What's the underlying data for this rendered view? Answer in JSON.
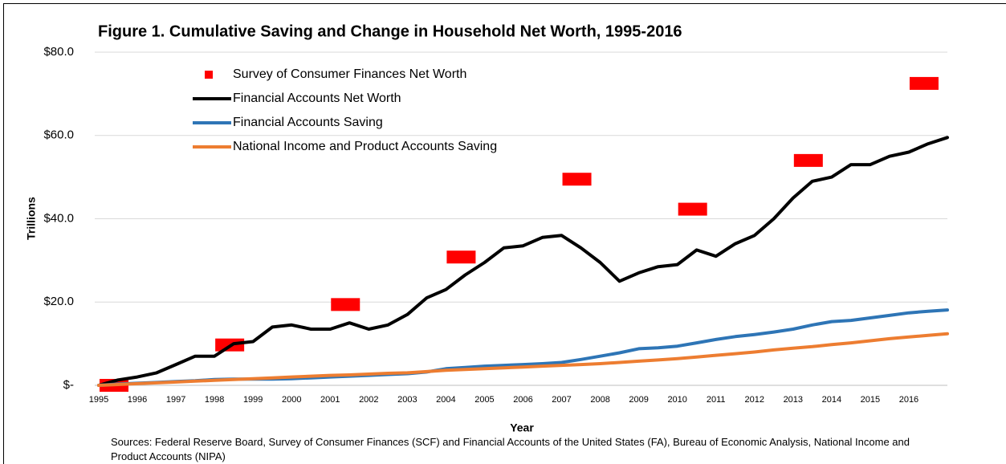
{
  "chart_data": {
    "type": "line",
    "title": "Figure 1. Cumulative Saving and Change in Household Net Worth, 1995-2016",
    "ylabel": "Trillions",
    "xlabel": "Year",
    "source": "Sources: Federal Reserve Board, Survey of Consumer Finances (SCF) and Financial Accounts of the United States (FA), Bureau of Economic Analysis, National Income and Product Accounts (NIPA)",
    "x": [
      1995,
      1995.5,
      1996,
      1996.5,
      1997,
      1997.5,
      1998,
      1998.5,
      1999,
      1999.5,
      2000,
      2000.5,
      2001,
      2001.5,
      2002,
      2002.5,
      2003,
      2003.5,
      2004,
      2004.5,
      2005,
      2005.5,
      2006,
      2006.5,
      2007,
      2007.5,
      2008,
      2008.5,
      2009,
      2009.5,
      2010,
      2010.5,
      2011,
      2011.5,
      2012,
      2012.5,
      2013,
      2013.5,
      2014,
      2014.5,
      2015,
      2015.5,
      2016,
      2016.5,
      2017
    ],
    "series": [
      {
        "name": "Survey of Consumer Finances Net Worth",
        "color": "#ff0000",
        "marker": "square",
        "x": [
          1995,
          1998,
          2001,
          2004,
          2007,
          2010,
          2013,
          2016
        ],
        "values": [
          0,
          9.7,
          19.4,
          30.8,
          49.5,
          42.3,
          54,
          72.5
        ]
      },
      {
        "name": "Financial Accounts Net Worth",
        "color": "#000000",
        "values": [
          0,
          1.3,
          2,
          3,
          5,
          7,
          7,
          10,
          10.5,
          14,
          14.5,
          13.5,
          13.5,
          15,
          13.5,
          14.5,
          17,
          21,
          23,
          26.5,
          29.5,
          33,
          33.5,
          35.5,
          36,
          33,
          29.5,
          25,
          27,
          28.5,
          29,
          32.5,
          31,
          34,
          36,
          40,
          45,
          49,
          50,
          53,
          53,
          55,
          56,
          58,
          59.5
        ]
      },
      {
        "name": "Financial Accounts Saving",
        "color": "#2e75b6",
        "values": [
          0,
          0.3,
          0.5,
          0.7,
          0.9,
          1.1,
          1.4,
          1.5,
          1.5,
          1.5,
          1.6,
          1.8,
          2.0,
          2.2,
          2.4,
          2.6,
          2.8,
          3.2,
          4.0,
          4.3,
          4.6,
          4.8,
          5.0,
          5.2,
          5.5,
          6.2,
          7.0,
          7.8,
          8.8,
          9.0,
          9.4,
          10.2,
          11.0,
          11.7,
          12.2,
          12.8,
          13.5,
          14.5,
          15.3,
          15.6,
          16.2,
          16.8,
          17.4,
          17.8,
          18.1
        ]
      },
      {
        "name": "National Income and Product Accounts Saving",
        "color": "#ed7d31",
        "values": [
          0,
          0.2,
          0.4,
          0.6,
          0.8,
          1.0,
          1.2,
          1.4,
          1.6,
          1.8,
          2.0,
          2.2,
          2.4,
          2.5,
          2.7,
          2.9,
          3.0,
          3.3,
          3.6,
          3.8,
          4.0,
          4.2,
          4.4,
          4.6,
          4.8,
          5.0,
          5.2,
          5.5,
          5.8,
          6.1,
          6.4,
          6.8,
          7.2,
          7.6,
          8.0,
          8.5,
          8.9,
          9.3,
          9.8,
          10.2,
          10.7,
          11.2,
          11.6,
          12.0,
          12.4
        ]
      }
    ],
    "xlim": [
      1995,
      2017
    ],
    "xticks": [
      1995,
      1996,
      1997,
      1998,
      1999,
      2000,
      2001,
      2002,
      2003,
      2004,
      2005,
      2006,
      2007,
      2008,
      2009,
      2010,
      2011,
      2012,
      2013,
      2014,
      2015,
      2016
    ],
    "ylim": [
      0,
      80
    ],
    "yticks": [
      {
        "value": 0,
        "label": "$-"
      },
      {
        "value": 20,
        "label": "$20.0"
      },
      {
        "value": 40,
        "label": "$40.0"
      },
      {
        "value": 60,
        "label": "$60.0"
      },
      {
        "value": 80,
        "label": "$80.0"
      }
    ],
    "grid": true,
    "legend": "top-left"
  }
}
